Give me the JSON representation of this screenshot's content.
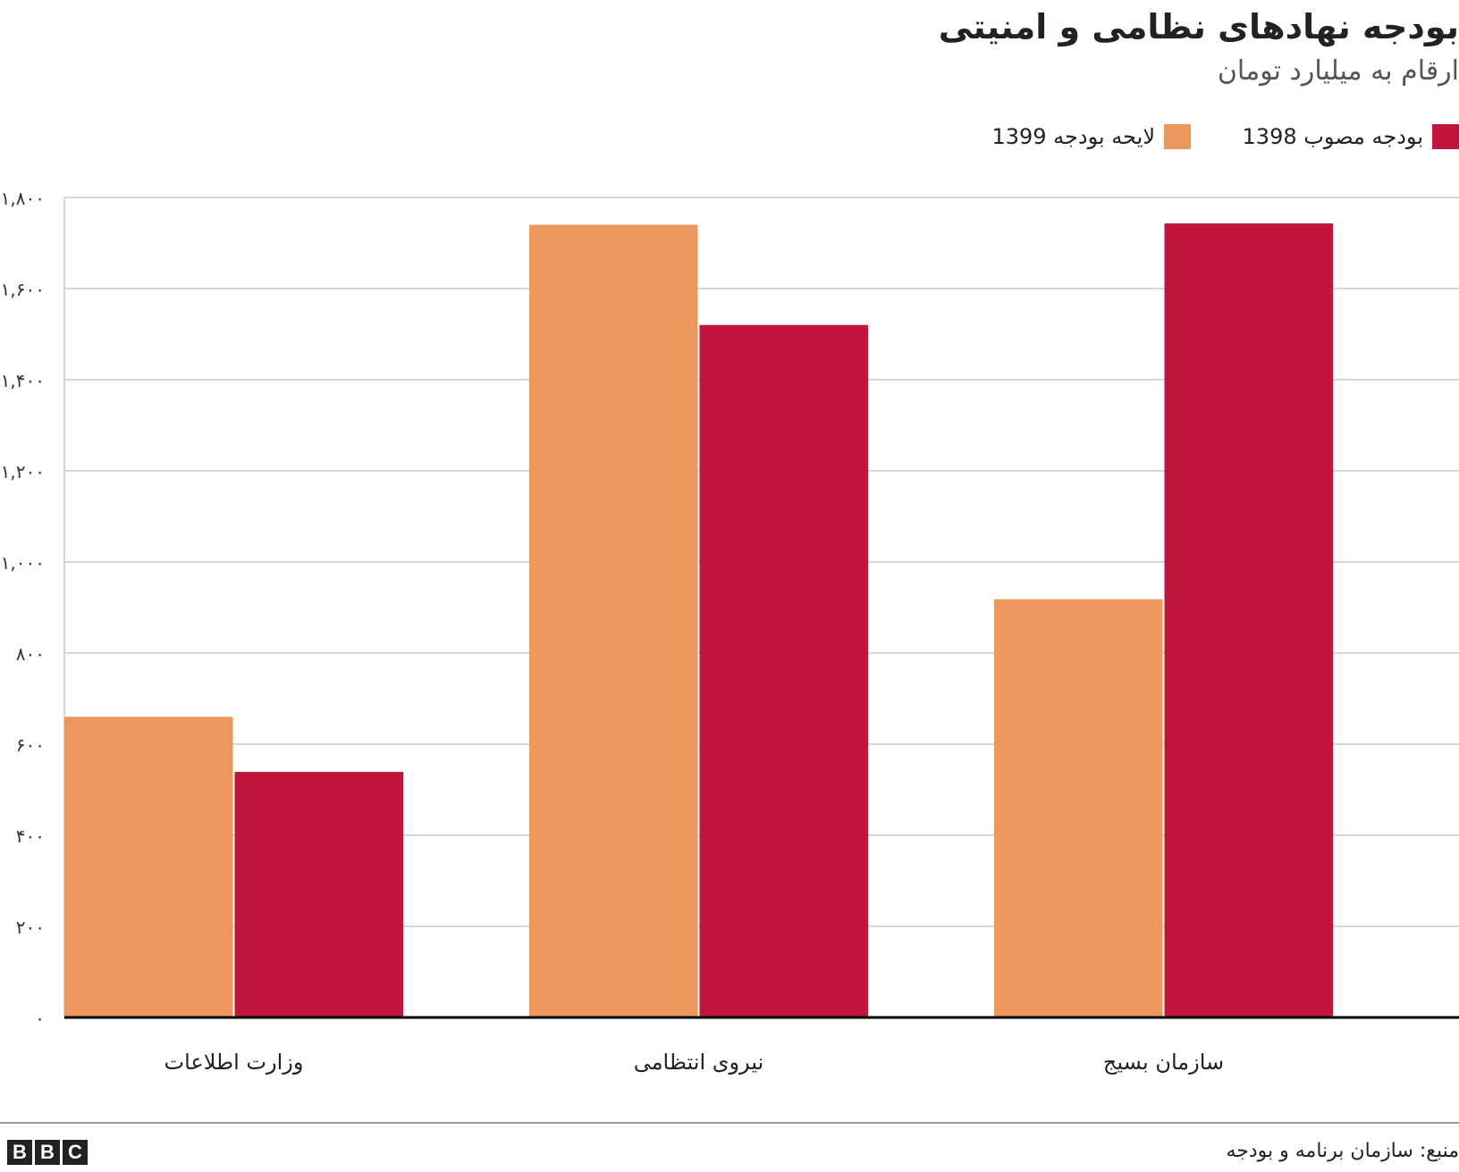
{
  "title": "بودجه نهادهای نظامی و امنیتی",
  "subtitle": "ارقام به میلیارد تومان",
  "source": "منبع: سازمان برنامه و بودجه",
  "logo": "BBC",
  "chart_data": {
    "type": "bar",
    "title": "بودجه نهادهای نظامی و امنیتی",
    "subtitle": "ارقام به میلیارد تومان",
    "xlabel": "",
    "ylabel": "",
    "categories": [
      "وزارت اطلاعات",
      "نیروی انتظامی",
      "سازمان بسیج"
    ],
    "series": [
      {
        "name": "لایحه بودجه 1399",
        "color": "#eb975e",
        "values": [
          660,
          1740,
          918
        ]
      },
      {
        "name": "بودجه مصوب 1398",
        "color": "#c0163c",
        "values": [
          539,
          1520,
          1743
        ]
      }
    ],
    "ylim": [
      0,
      1800
    ],
    "yticks": [
      0,
      200,
      400,
      600,
      800,
      1000,
      1200,
      1400,
      1600,
      1800
    ],
    "ytick_labels": [
      "۰",
      "۲۰۰",
      "۴۰۰",
      "۶۰۰",
      "۸۰۰",
      "۱,۰۰۰",
      "۱,۲۰۰",
      "۱,۴۰۰",
      "۱,۶۰۰",
      "۱,۸۰۰"
    ],
    "grid": true,
    "legend_position": "top-right",
    "legend_order": [
      1,
      0
    ]
  }
}
